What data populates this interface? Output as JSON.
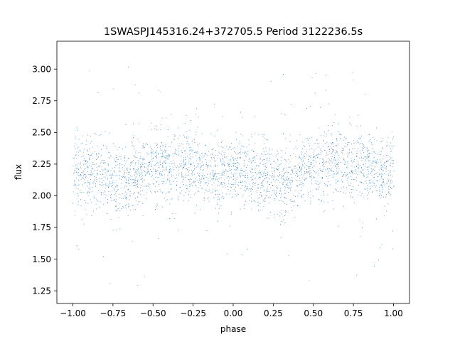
{
  "chart_data": {
    "type": "scatter",
    "title": "1SWASPJ145316.24+372705.5 Period 3122236.5s",
    "xlabel": "phase",
    "ylabel": "flux",
    "xlim": [
      -1.1,
      1.1
    ],
    "ylim": [
      1.15,
      3.22
    ],
    "xticks": [
      -1.0,
      -0.75,
      -0.5,
      -0.25,
      0.0,
      0.25,
      0.5,
      0.75,
      1.0
    ],
    "xtick_labels": [
      "−1.00",
      "−0.75",
      "−0.50",
      "−0.25",
      "0.00",
      "0.25",
      "0.50",
      "0.75",
      "1.00"
    ],
    "yticks": [
      1.25,
      1.5,
      1.75,
      2.0,
      2.25,
      2.5,
      2.75,
      3.0
    ],
    "ytick_labels": [
      "1.25",
      "1.50",
      "1.75",
      "2.00",
      "2.25",
      "2.50",
      "2.75",
      "3.00"
    ],
    "grid": false,
    "point_color": "#1f77b4",
    "series": [
      {
        "phase": [
          -1.0,
          -0.95,
          -0.9,
          -0.85,
          -0.8,
          -0.75,
          -0.7,
          -0.65,
          -0.6,
          -0.55,
          -0.5,
          -0.45,
          -0.4,
          -0.35,
          -0.3,
          -0.25,
          -0.2,
          -0.15,
          -0.1,
          -0.05,
          0.0,
          0.05,
          0.1,
          0.15,
          0.2,
          0.25,
          0.3,
          0.35,
          0.4,
          0.45,
          0.5,
          0.55,
          0.6,
          0.65,
          0.7,
          0.75,
          0.8,
          0.85,
          0.9,
          0.95,
          1.0
        ],
        "median_flux": [
          2.2,
          2.19,
          2.18,
          2.17,
          2.14,
          2.12,
          2.1,
          2.12,
          2.17,
          2.22,
          2.24,
          2.26,
          2.26,
          2.25,
          2.24,
          2.23,
          2.2,
          2.18,
          2.19,
          2.2,
          2.2,
          2.19,
          2.18,
          2.16,
          2.14,
          2.12,
          2.1,
          2.12,
          2.16,
          2.2,
          2.23,
          2.25,
          2.26,
          2.26,
          2.25,
          2.24,
          2.22,
          2.21,
          2.2,
          2.2,
          2.2
        ],
        "flux_min": 1.25,
        "flux_max": 3.15
      }
    ]
  }
}
